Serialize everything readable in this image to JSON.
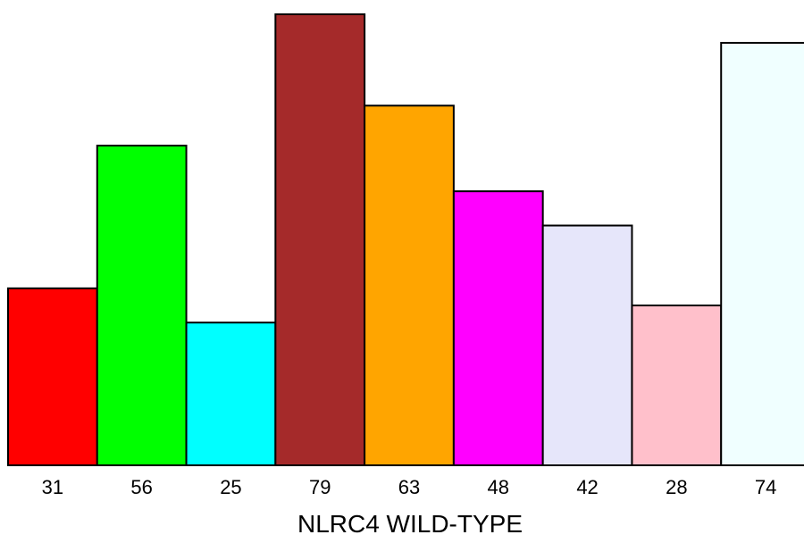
{
  "chart_data": {
    "type": "bar",
    "categories": [
      "31",
      "56",
      "25",
      "79",
      "63",
      "48",
      "42",
      "28",
      "74"
    ],
    "values": [
      31,
      56,
      25,
      79,
      63,
      48,
      42,
      28,
      74
    ],
    "colors": [
      "#ff0000",
      "#00ff00",
      "#00ffff",
      "#a52a2a",
      "#ffa500",
      "#ff00ff",
      "#e6e6fa",
      "#ffc0cb",
      "#f0ffff"
    ],
    "title": "",
    "xlabel": "NLRC4 WILD-TYPE",
    "ylabel": "",
    "ylim": [
      0,
      79
    ],
    "grid": false,
    "legend": "none"
  }
}
